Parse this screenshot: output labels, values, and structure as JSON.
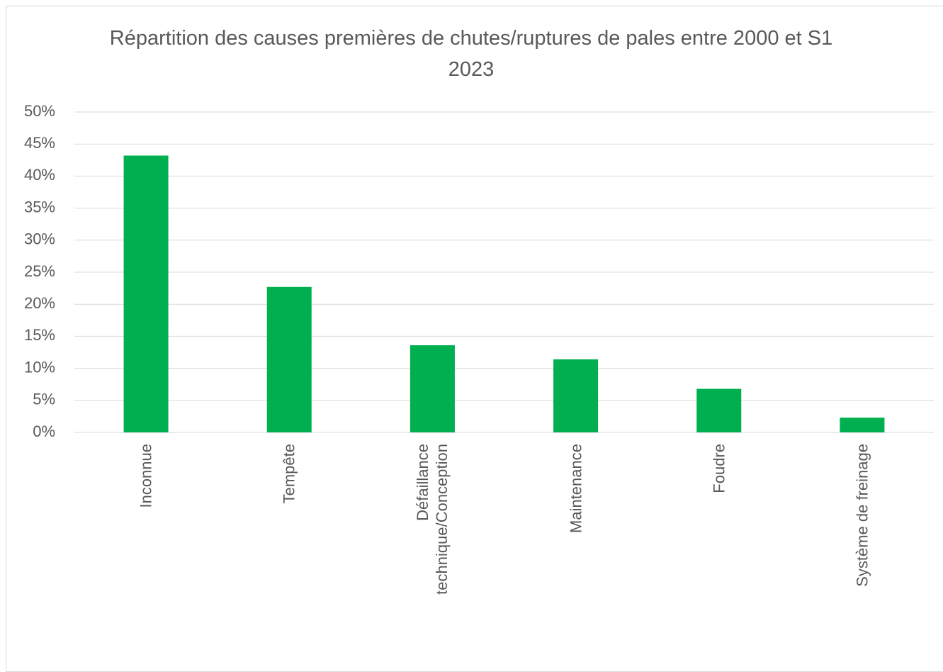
{
  "chart_data": {
    "type": "bar",
    "title": "Répartition des causes premières de chutes/ruptures de pales entre 2000 et S1 2023",
    "categories": [
      "Inconnue",
      "Tempête",
      "Défaillance technique/Conception",
      "Maintenance",
      "Foudre",
      "Système de freinage"
    ],
    "values": [
      43.2,
      22.7,
      13.6,
      11.4,
      6.8,
      2.3
    ],
    "color": "#00b050",
    "ylim": [
      0,
      50
    ],
    "yticks": [
      {
        "value": 0,
        "label": "0%"
      },
      {
        "value": 5,
        "label": "5%"
      },
      {
        "value": 10,
        "label": "10%"
      },
      {
        "value": 15,
        "label": "15%"
      },
      {
        "value": 20,
        "label": "20%"
      },
      {
        "value": 25,
        "label": "25%"
      },
      {
        "value": 30,
        "label": "30%"
      },
      {
        "value": 35,
        "label": "35%"
      },
      {
        "value": 40,
        "label": "40%"
      },
      {
        "value": 45,
        "label": "45%"
      },
      {
        "value": 50,
        "label": "50%"
      }
    ],
    "grid": true
  }
}
